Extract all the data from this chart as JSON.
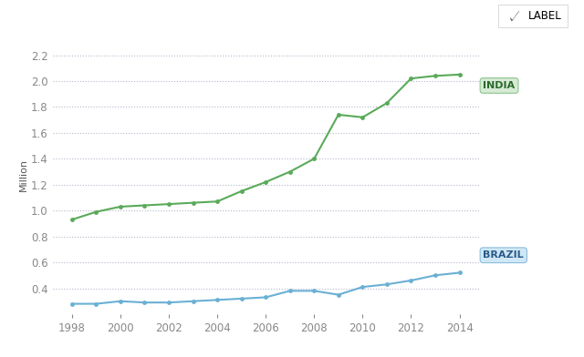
{
  "title": "",
  "ylabel": "Million",
  "background_color": "#ffffff",
  "plot_bg_color": "#ffffff",
  "grid_color": "#b0b8cc",
  "india": {
    "years": [
      1998,
      1999,
      2000,
      2001,
      2002,
      2003,
      2004,
      2005,
      2006,
      2007,
      2008,
      2009,
      2010,
      2011,
      2012,
      2013,
      2014
    ],
    "values": [
      0.93,
      0.99,
      1.03,
      1.04,
      1.05,
      1.06,
      1.07,
      1.15,
      1.22,
      1.3,
      1.4,
      1.74,
      1.72,
      1.83,
      2.02,
      2.04,
      2.05
    ],
    "color": "#5aaa5a",
    "label": "INDIA",
    "label_bg": "#d6ead6",
    "label_border": "#8bc48b",
    "label_color": "#2a6a2a"
  },
  "brazil": {
    "years": [
      1998,
      1999,
      2000,
      2001,
      2002,
      2003,
      2004,
      2005,
      2006,
      2007,
      2008,
      2009,
      2010,
      2011,
      2012,
      2013,
      2014
    ],
    "values": [
      0.28,
      0.28,
      0.3,
      0.29,
      0.29,
      0.3,
      0.31,
      0.32,
      0.33,
      0.38,
      0.38,
      0.35,
      0.41,
      0.43,
      0.46,
      0.5,
      0.52
    ],
    "color": "#6ab0d4",
    "label": "BRAZIL",
    "label_bg": "#d0e8f5",
    "label_border": "#8bbedd",
    "label_color": "#2a5a8a"
  },
  "ylim": [
    0.2,
    2.35
  ],
  "yticks": [
    0.4,
    0.6,
    0.8,
    1.0,
    1.2,
    1.4,
    1.6,
    1.8,
    2.0,
    2.2
  ],
  "xticks": [
    1998,
    2000,
    2002,
    2004,
    2006,
    2008,
    2010,
    2012,
    2014
  ],
  "legend_label": "LABEL",
  "legend_icon_color": "#666666"
}
